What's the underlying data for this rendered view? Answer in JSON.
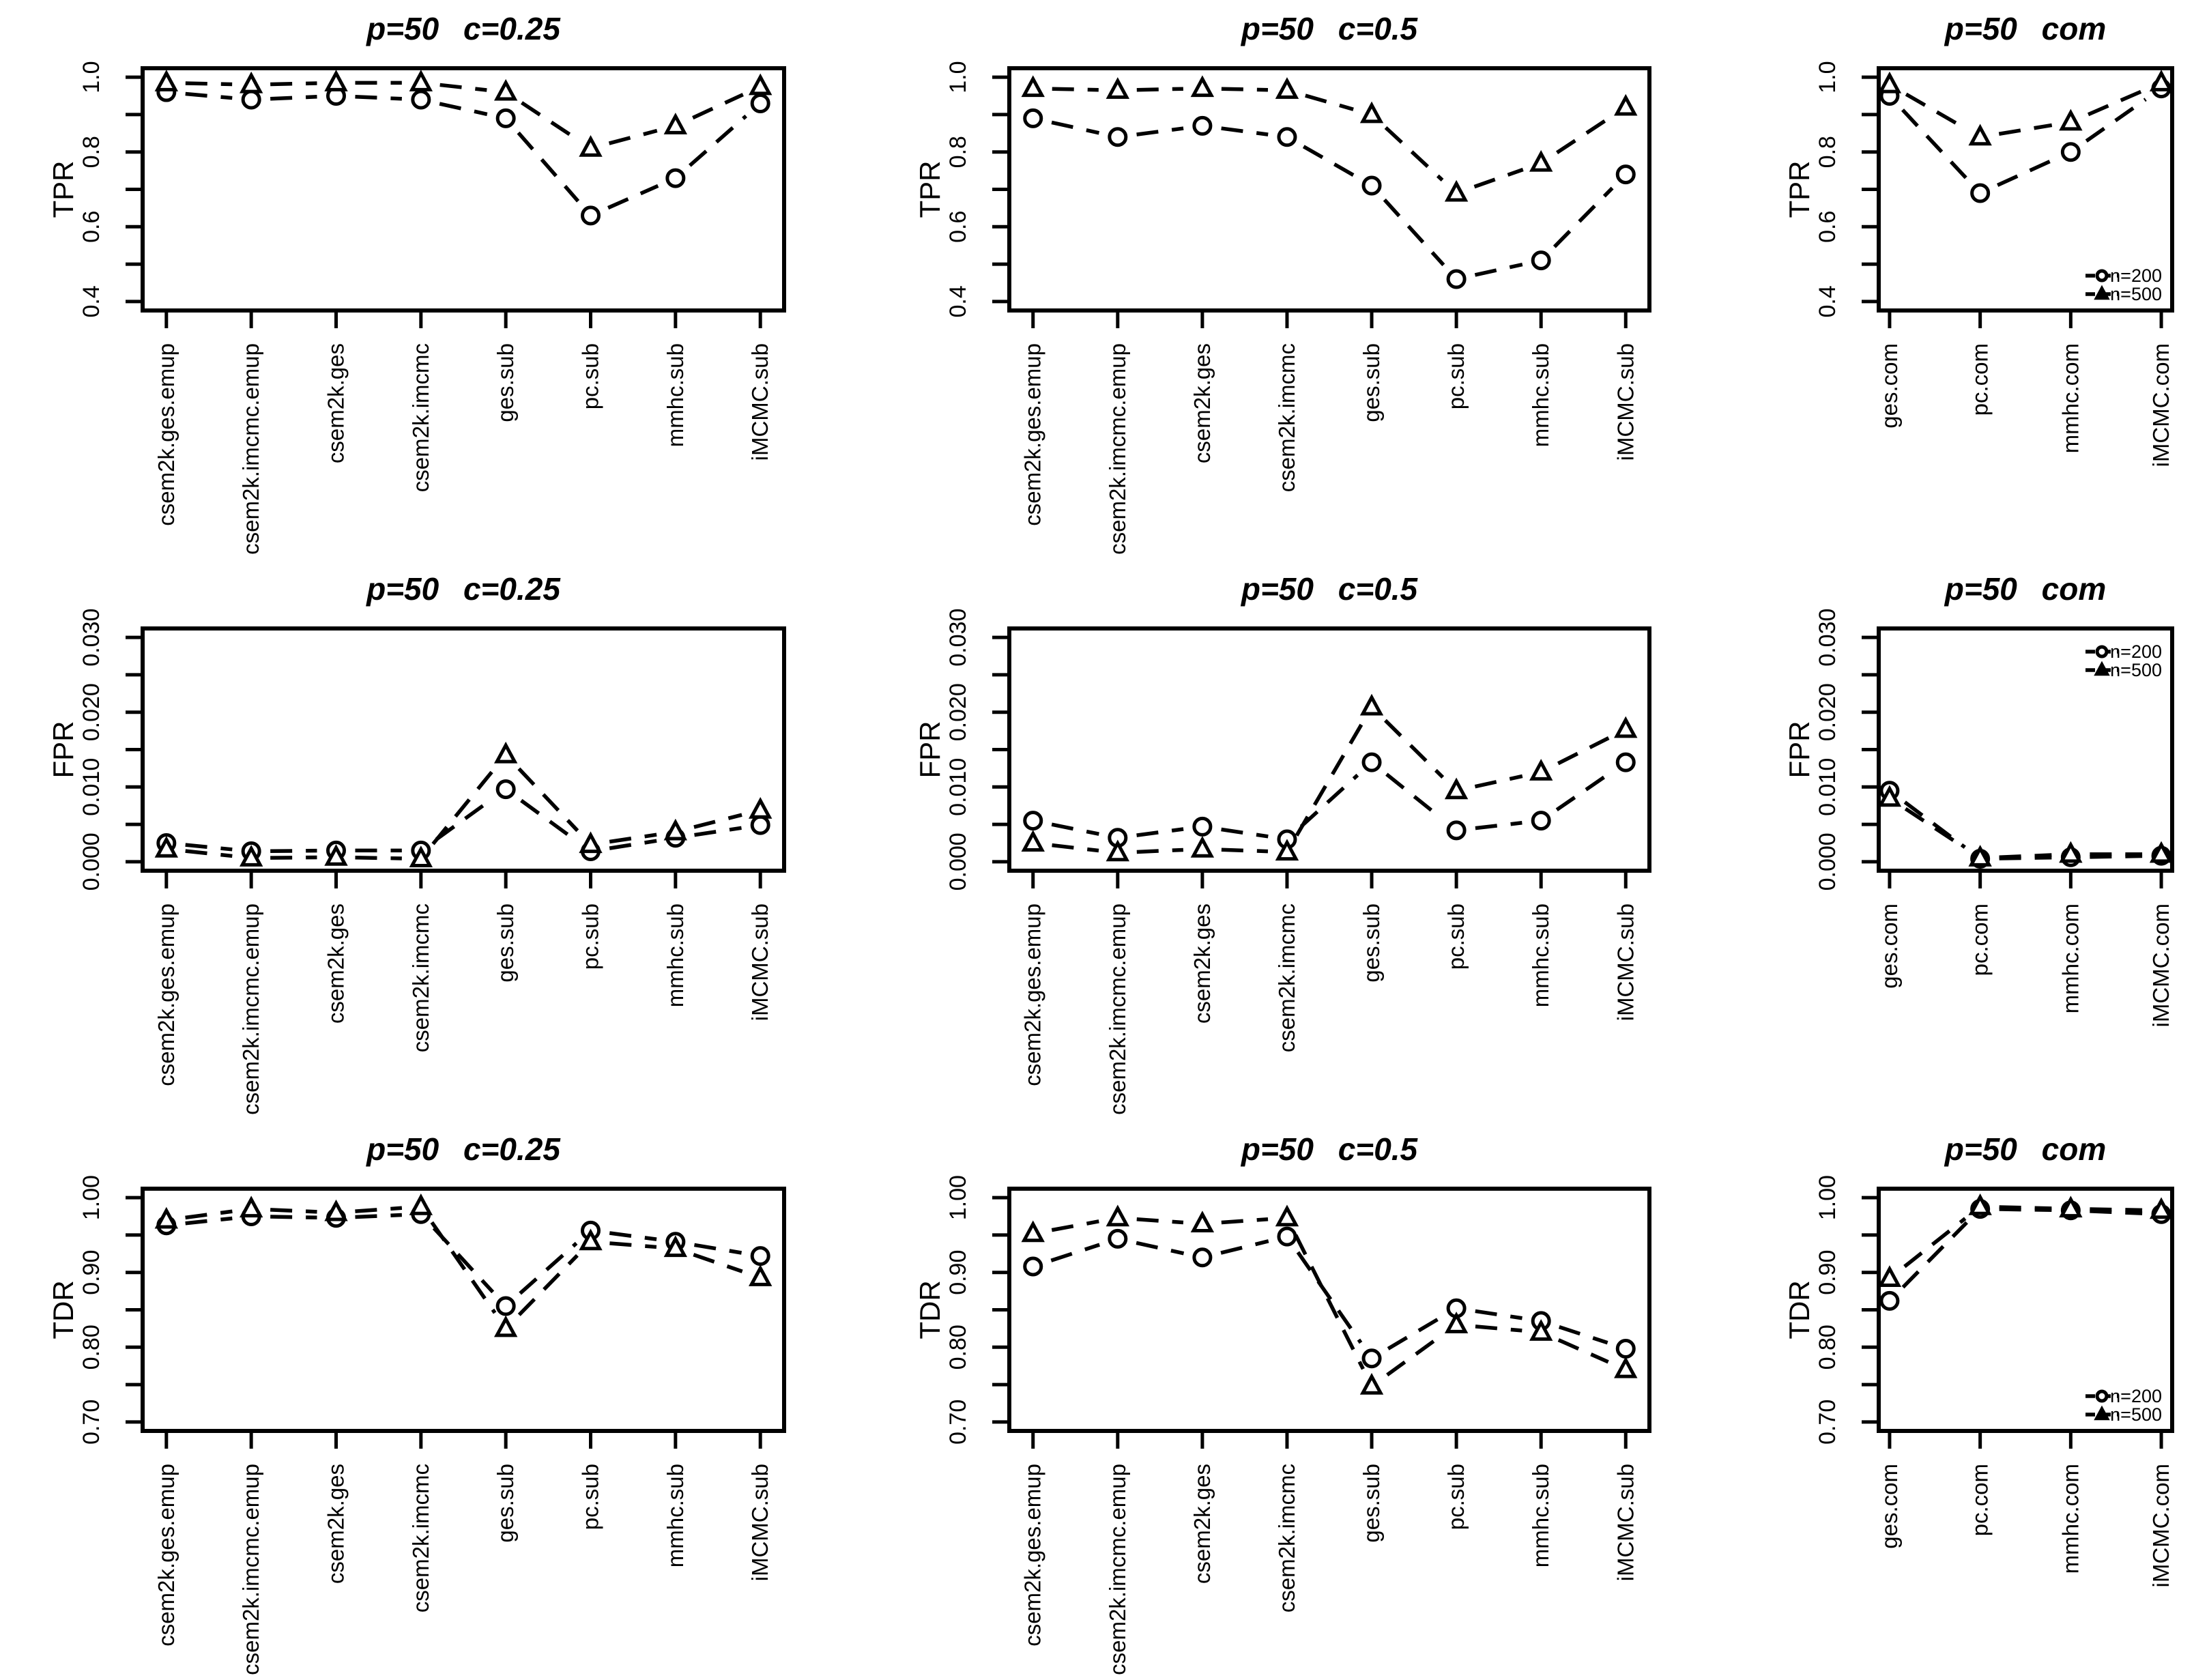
{
  "figure": {
    "background": "#ffffff",
    "ink": "#000000",
    "rows": [
      "TPR",
      "FPR",
      "TDR"
    ],
    "columns": [
      "p=50  c=0.25",
      "p=50  c=0.5",
      "p=50  com"
    ]
  },
  "legend_items": [
    {
      "label": "n=200",
      "marker": "circle"
    },
    {
      "label": "n=500",
      "marker": "triangle"
    }
  ],
  "chart_data": [
    {
      "id": "tpr-c025",
      "type": "line",
      "title": "p=50  c=0.25",
      "xlabel": "",
      "ylabel": "TPR",
      "ylim": [
        0.4,
        1.0
      ],
      "yticks": [
        0.4,
        0.6,
        0.8,
        1.0
      ],
      "ytick_labels": [
        "0.4",
        "0.6",
        "0.8",
        "1.0"
      ],
      "yticks_minor": [
        0.5,
        0.7,
        0.9
      ],
      "categories": [
        "csem2k.ges.emup",
        "csem2k.imcmc.emup",
        "csem2k.ges",
        "csem2k.imcmc",
        "ges.sub",
        "pc.sub",
        "mmhc.sub",
        "iMCMC.sub"
      ],
      "series": [
        {
          "name": "n=200",
          "marker": "circle",
          "values": [
            0.96,
            0.94,
            0.95,
            0.94,
            0.89,
            0.63,
            0.73,
            0.93
          ]
        },
        {
          "name": "n=500",
          "marker": "triangle",
          "values": [
            0.985,
            0.98,
            0.985,
            0.985,
            0.96,
            0.81,
            0.87,
            0.975
          ]
        }
      ],
      "legend_position": null
    },
    {
      "id": "tpr-c05",
      "type": "line",
      "title": "p=50  c=0.5",
      "xlabel": "",
      "ylabel": "TPR",
      "ylim": [
        0.4,
        1.0
      ],
      "yticks": [
        0.4,
        0.6,
        0.8,
        1.0
      ],
      "ytick_labels": [
        "0.4",
        "0.6",
        "0.8",
        "1.0"
      ],
      "yticks_minor": [
        0.5,
        0.7,
        0.9
      ],
      "categories": [
        "csem2k.ges.emup",
        "csem2k.imcmc.emup",
        "csem2k.ges",
        "csem2k.imcmc",
        "ges.sub",
        "pc.sub",
        "mmhc.sub",
        "iMCMC.sub"
      ],
      "series": [
        {
          "name": "n=200",
          "marker": "circle",
          "values": [
            0.89,
            0.84,
            0.87,
            0.84,
            0.71,
            0.46,
            0.51,
            0.74
          ]
        },
        {
          "name": "n=500",
          "marker": "triangle",
          "values": [
            0.97,
            0.965,
            0.97,
            0.965,
            0.9,
            0.69,
            0.77,
            0.92
          ]
        }
      ],
      "legend_position": null
    },
    {
      "id": "tpr-com",
      "type": "line",
      "title": "p=50  com",
      "xlabel": "",
      "ylabel": "TPR",
      "ylim": [
        0.4,
        1.0
      ],
      "yticks": [
        0.4,
        0.6,
        0.8,
        1.0
      ],
      "ytick_labels": [
        "0.4",
        "0.6",
        "0.8",
        "1.0"
      ],
      "yticks_minor": [
        0.5,
        0.7,
        0.9
      ],
      "categories": [
        "ges.com",
        "pc.com",
        "mmhc.com",
        "iMCMC.com"
      ],
      "series": [
        {
          "name": "n=200",
          "marker": "circle",
          "values": [
            0.95,
            0.69,
            0.8,
            0.97
          ]
        },
        {
          "name": "n=500",
          "marker": "triangle",
          "values": [
            0.98,
            0.84,
            0.88,
            0.985
          ]
        }
      ],
      "legend_position": "bottom-right"
    },
    {
      "id": "fpr-c025",
      "type": "line",
      "title": "p=50  c=0.25",
      "xlabel": "",
      "ylabel": "FPR",
      "ylim": [
        0.0,
        0.03
      ],
      "yticks": [
        0.0,
        0.01,
        0.02,
        0.03
      ],
      "ytick_labels": [
        "0.000",
        "0.010",
        "0.020",
        "0.030"
      ],
      "yticks_minor": [
        0.005,
        0.015,
        0.025
      ],
      "categories": [
        "csem2k.ges.emup",
        "csem2k.imcmc.emup",
        "csem2k.ges",
        "csem2k.imcmc",
        "ges.sub",
        "pc.sub",
        "mmhc.sub",
        "iMCMC.sub"
      ],
      "series": [
        {
          "name": "n=200",
          "marker": "circle",
          "values": [
            0.0025,
            0.0014,
            0.0015,
            0.0015,
            0.0097,
            0.0014,
            0.0032,
            0.0049
          ]
        },
        {
          "name": "n=500",
          "marker": "triangle",
          "values": [
            0.0017,
            0.0005,
            0.0006,
            0.0004,
            0.0143,
            0.0023,
            0.004,
            0.0069
          ]
        }
      ],
      "legend_position": null
    },
    {
      "id": "fpr-c05",
      "type": "line",
      "title": "p=50  c=0.5",
      "xlabel": "",
      "ylabel": "FPR",
      "ylim": [
        0.0,
        0.03
      ],
      "yticks": [
        0.0,
        0.01,
        0.02,
        0.03
      ],
      "ytick_labels": [
        "0.000",
        "0.010",
        "0.020",
        "0.030"
      ],
      "yticks_minor": [
        0.005,
        0.015,
        0.025
      ],
      "categories": [
        "csem2k.ges.emup",
        "csem2k.imcmc.emup",
        "csem2k.ges",
        "csem2k.imcmc",
        "ges.sub",
        "pc.sub",
        "mmhc.sub",
        "iMCMC.sub"
      ],
      "series": [
        {
          "name": "n=200",
          "marker": "circle",
          "values": [
            0.0055,
            0.0032,
            0.0047,
            0.003,
            0.0133,
            0.0042,
            0.0055,
            0.0133
          ]
        },
        {
          "name": "n=500",
          "marker": "triangle",
          "values": [
            0.0025,
            0.0012,
            0.0017,
            0.0013,
            0.0207,
            0.0095,
            0.012,
            0.0177
          ]
        }
      ],
      "legend_position": null
    },
    {
      "id": "fpr-com",
      "type": "line",
      "title": "p=50  com",
      "xlabel": "",
      "ylabel": "FPR",
      "ylim": [
        0.0,
        0.03
      ],
      "yticks": [
        0.0,
        0.01,
        0.02,
        0.03
      ],
      "ytick_labels": [
        "0.000",
        "0.010",
        "0.020",
        "0.030"
      ],
      "yticks_minor": [
        0.005,
        0.015,
        0.025
      ],
      "categories": [
        "ges.com",
        "pc.com",
        "mmhc.com",
        "iMCMC.com"
      ],
      "series": [
        {
          "name": "n=200",
          "marker": "circle",
          "values": [
            0.0095,
            0.0004,
            0.0006,
            0.0008
          ]
        },
        {
          "name": "n=500",
          "marker": "triangle",
          "values": [
            0.0085,
            0.0005,
            0.001,
            0.001
          ]
        }
      ],
      "legend_position": "top-right"
    },
    {
      "id": "tdr-c025",
      "type": "line",
      "title": "p=50  c=0.25",
      "xlabel": "",
      "ylabel": "TDR",
      "ylim": [
        0.7,
        1.0
      ],
      "yticks": [
        0.7,
        0.8,
        0.9,
        1.0
      ],
      "ytick_labels": [
        "0.70",
        "0.80",
        "0.90",
        "1.00"
      ],
      "yticks_minor": [
        0.75,
        0.85,
        0.95
      ],
      "categories": [
        "csem2k.ges.emup",
        "csem2k.imcmc.emup",
        "csem2k.ges",
        "csem2k.imcmc",
        "ges.sub",
        "pc.sub",
        "mmhc.sub",
        "iMCMC.sub"
      ],
      "series": [
        {
          "name": "n=200",
          "marker": "circle",
          "values": [
            0.963,
            0.975,
            0.973,
            0.978,
            0.855,
            0.956,
            0.941,
            0.922
          ]
        },
        {
          "name": "n=500",
          "marker": "triangle",
          "values": [
            0.97,
            0.985,
            0.98,
            0.988,
            0.825,
            0.941,
            0.932,
            0.893
          ]
        }
      ],
      "legend_position": null
    },
    {
      "id": "tdr-c05",
      "type": "line",
      "title": "p=50  c=0.5",
      "xlabel": "",
      "ylabel": "TDR",
      "ylim": [
        0.7,
        1.0
      ],
      "yticks": [
        0.7,
        0.8,
        0.9,
        1.0
      ],
      "ytick_labels": [
        "0.70",
        "0.80",
        "0.90",
        "1.00"
      ],
      "yticks_minor": [
        0.75,
        0.85,
        0.95
      ],
      "categories": [
        "csem2k.ges.emup",
        "csem2k.imcmc.emup",
        "csem2k.ges",
        "csem2k.imcmc",
        "ges.sub",
        "pc.sub",
        "mmhc.sub",
        "iMCMC.sub"
      ],
      "series": [
        {
          "name": "n=200",
          "marker": "circle",
          "values": [
            0.908,
            0.945,
            0.92,
            0.948,
            0.785,
            0.852,
            0.835,
            0.798
          ]
        },
        {
          "name": "n=500",
          "marker": "triangle",
          "values": [
            0.952,
            0.973,
            0.965,
            0.973,
            0.748,
            0.83,
            0.82,
            0.77
          ]
        }
      ],
      "legend_position": null
    },
    {
      "id": "tdr-com",
      "type": "line",
      "title": "p=50  com",
      "xlabel": "",
      "ylabel": "TDR",
      "ylim": [
        0.7,
        1.0
      ],
      "yticks": [
        0.7,
        0.8,
        0.9,
        1.0
      ],
      "ytick_labels": [
        "0.70",
        "0.80",
        "0.90",
        "1.00"
      ],
      "yticks_minor": [
        0.75,
        0.85,
        0.95
      ],
      "categories": [
        "ges.com",
        "pc.com",
        "mmhc.com",
        "iMCMC.com"
      ],
      "series": [
        {
          "name": "n=200",
          "marker": "circle",
          "values": [
            0.862,
            0.985,
            0.983,
            0.978
          ]
        },
        {
          "name": "n=500",
          "marker": "triangle",
          "values": [
            0.892,
            0.988,
            0.985,
            0.983
          ]
        }
      ],
      "legend_position": "bottom-right"
    }
  ]
}
